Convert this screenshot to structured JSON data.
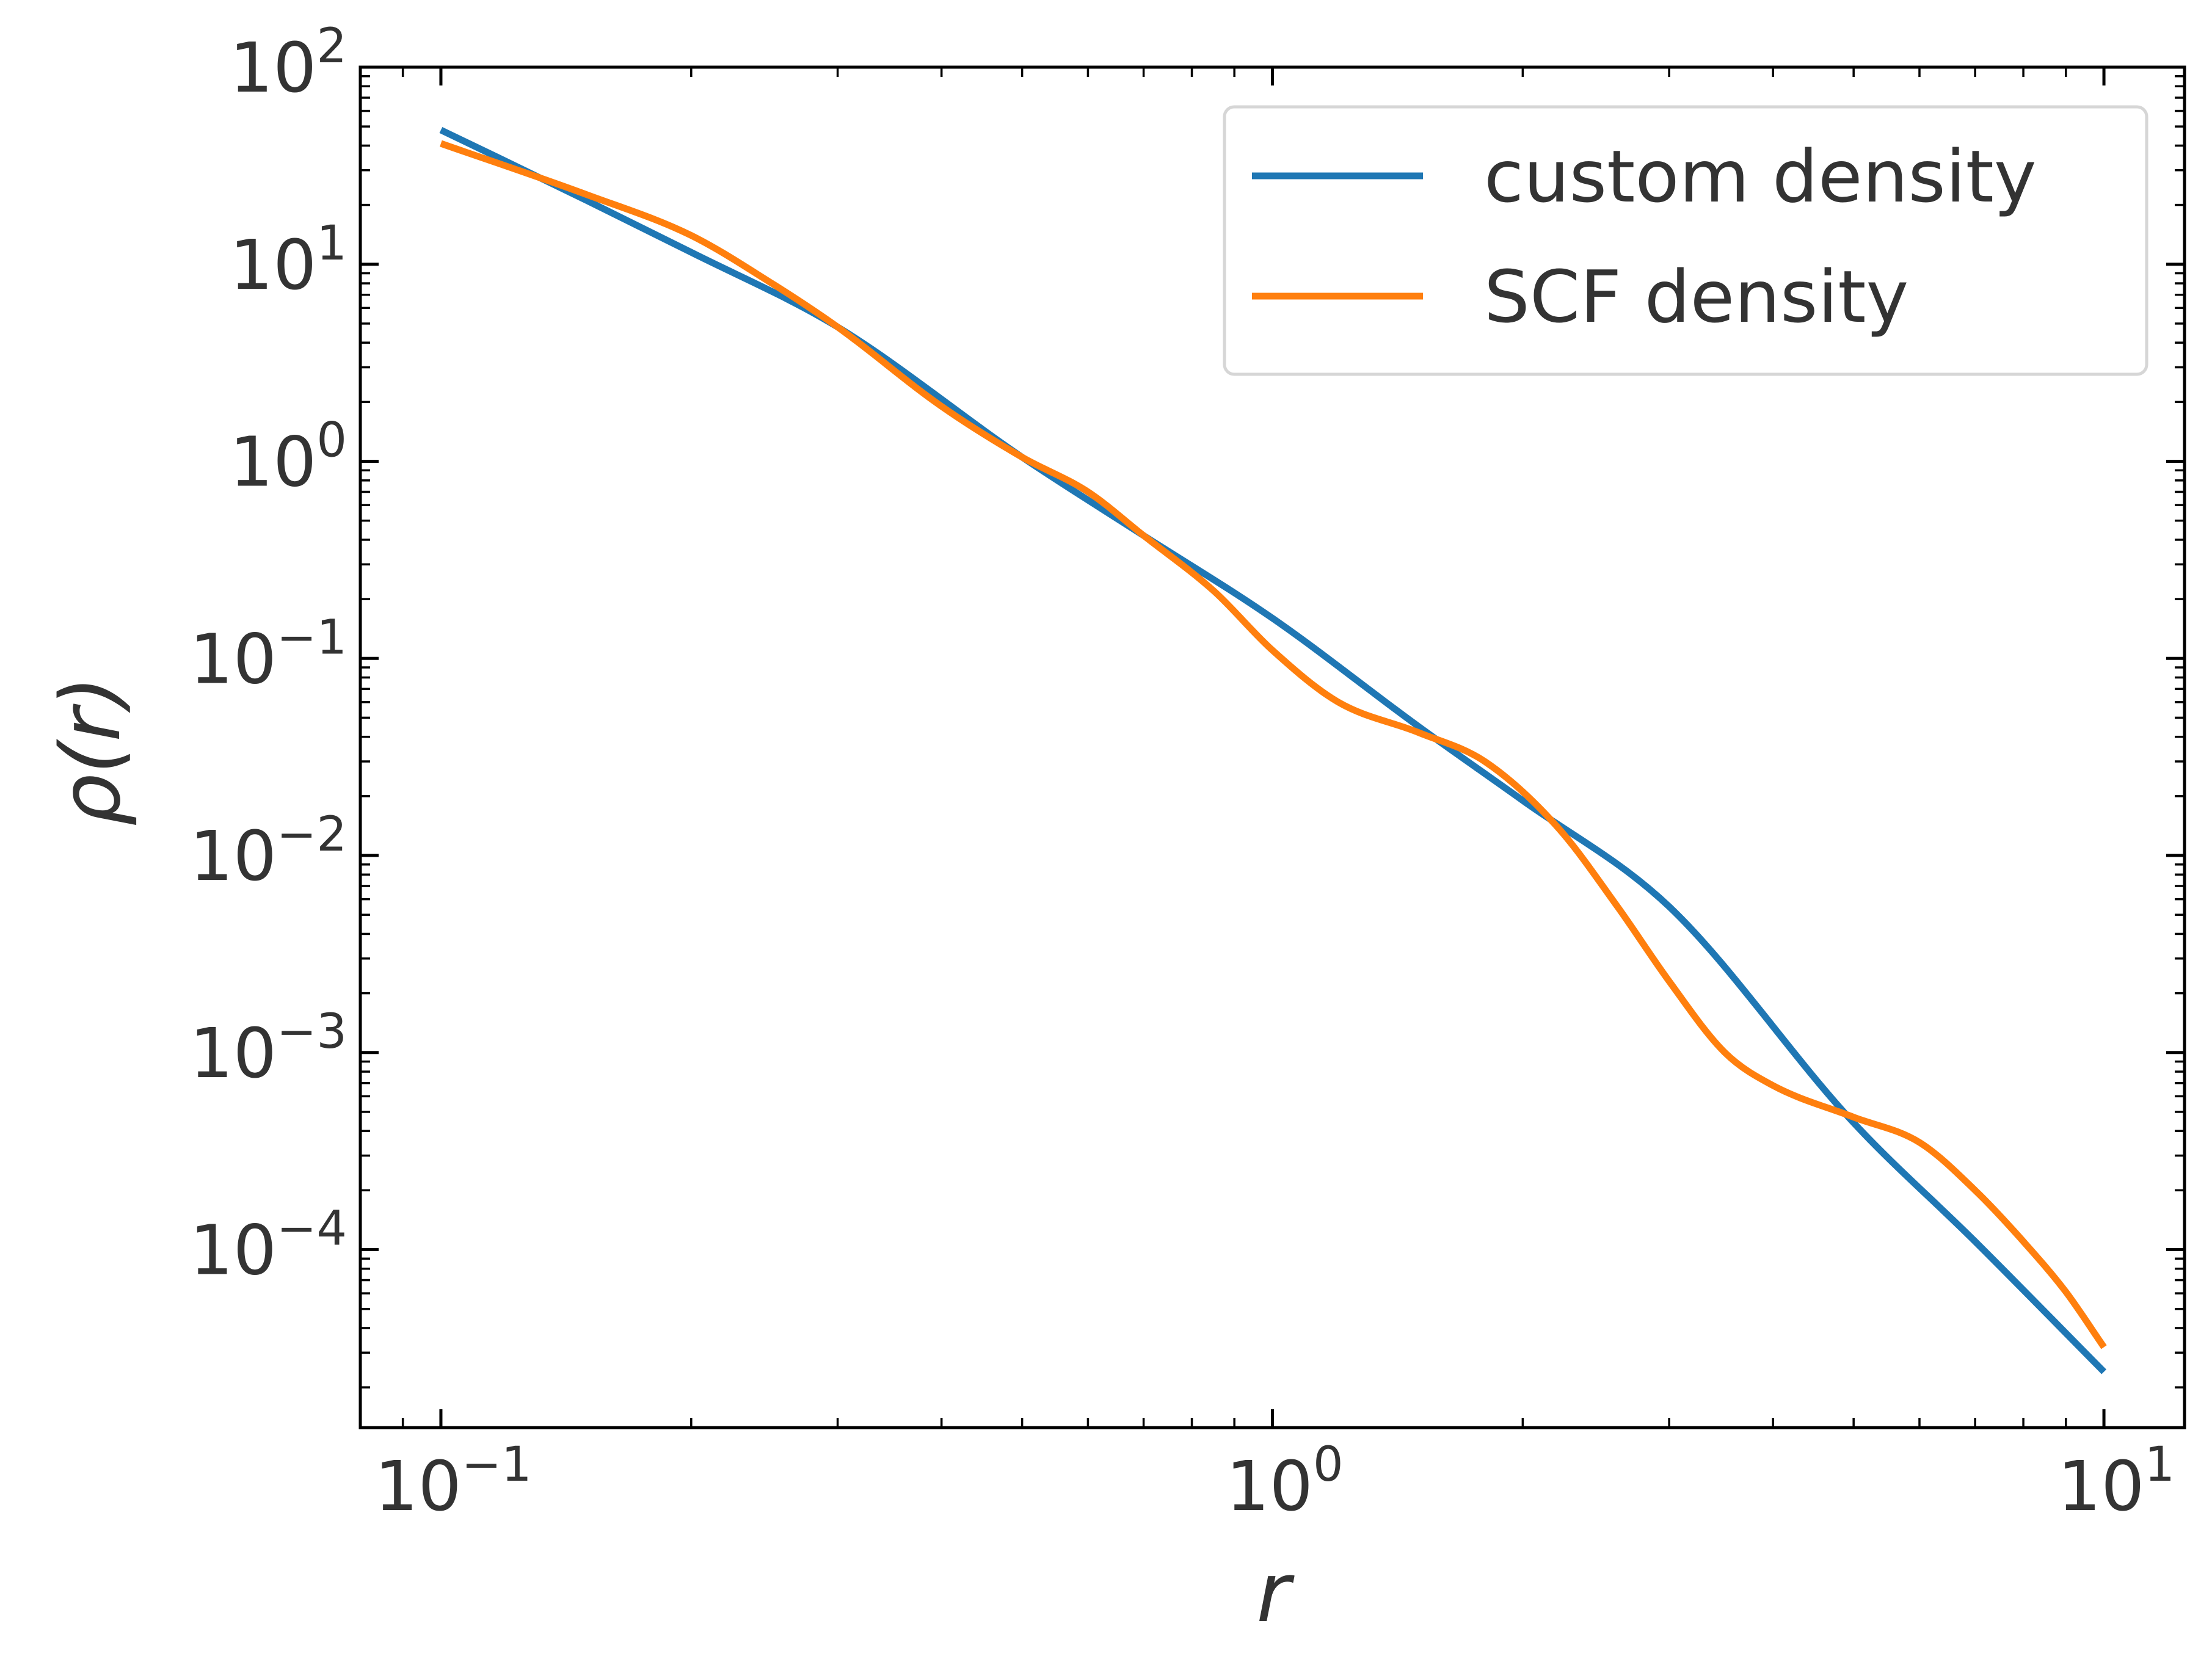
{
  "chart_data": {
    "type": "line",
    "title": "",
    "xlabel": "r",
    "ylabel": "ρ(r)",
    "xscale": "log",
    "yscale": "log",
    "xlim": [
      0.08,
      12.5
    ],
    "ylim": [
      1.25e-05,
      100
    ],
    "grid": false,
    "legend_position": "top-right",
    "x_ticks": [
      {
        "value": 0.1,
        "base": "10",
        "exp": "−1"
      },
      {
        "value": 1,
        "base": "10",
        "exp": "0"
      },
      {
        "value": 10,
        "base": "10",
        "exp": "1"
      }
    ],
    "y_ticks": [
      {
        "value": 100,
        "base": "10",
        "exp": "2"
      },
      {
        "value": 10,
        "base": "10",
        "exp": "1"
      },
      {
        "value": 1,
        "base": "10",
        "exp": "0"
      },
      {
        "value": 0.1,
        "base": "10",
        "exp": "−1"
      },
      {
        "value": 0.01,
        "base": "10",
        "exp": "−2"
      },
      {
        "value": 0.001,
        "base": "10",
        "exp": "−3"
      },
      {
        "value": 0.0001,
        "base": "10",
        "exp": "−4"
      }
    ],
    "series": [
      {
        "name": "custom density",
        "color": "#1f77b4",
        "x": [
          0.1,
          0.15,
          0.2,
          0.3,
          0.5,
          0.7,
          1.0,
          1.5,
          2.0,
          3.0,
          5.0,
          7.0,
          10.0
        ],
        "y": [
          48,
          21,
          11.5,
          4.8,
          1.05,
          0.42,
          0.16,
          0.045,
          0.019,
          0.0055,
          0.00044,
          0.00011,
          2.4e-05
        ]
      },
      {
        "name": "SCF density",
        "color": "#ff7f0e",
        "x": [
          0.1,
          0.15,
          0.2,
          0.25,
          0.3,
          0.4,
          0.5,
          0.6,
          0.7,
          0.85,
          1.0,
          1.2,
          1.5,
          1.8,
          2.2,
          2.6,
          3.0,
          3.5,
          4.0,
          5.0,
          6.0,
          7.0,
          8.0,
          9.0,
          10.0
        ],
        "y": [
          41,
          22.5,
          14,
          8,
          4.8,
          1.9,
          1.05,
          0.7,
          0.42,
          0.22,
          0.11,
          0.06,
          0.042,
          0.03,
          0.014,
          0.0055,
          0.0023,
          0.001,
          0.00068,
          0.00047,
          0.00035,
          0.0002,
          0.00011,
          6.1e-05,
          3.2e-05
        ]
      }
    ]
  }
}
